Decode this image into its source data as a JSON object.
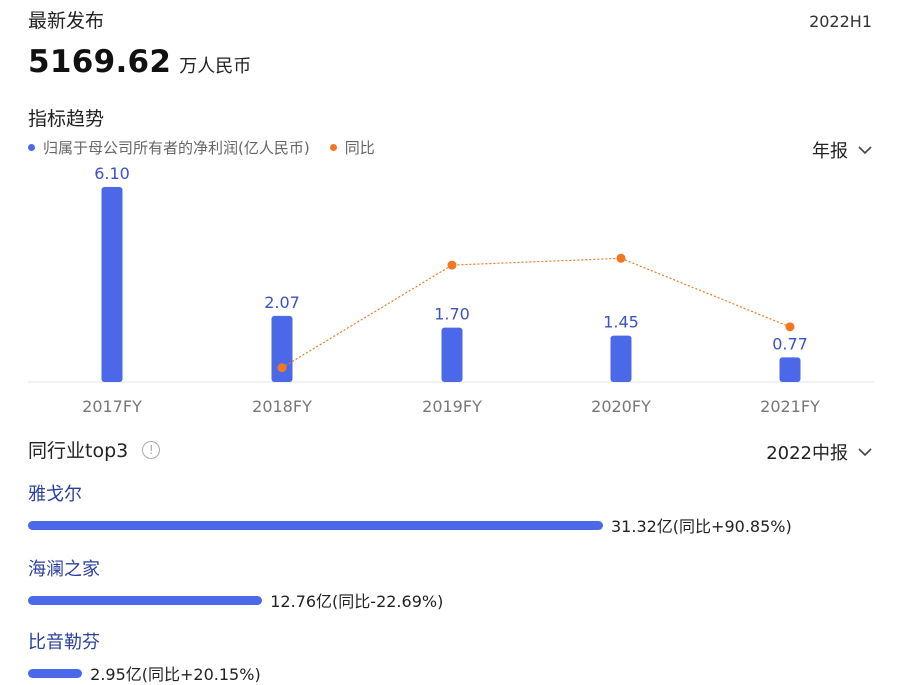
{
  "header": {
    "title": "最新发布",
    "period": "2022H1",
    "value": "5169.62",
    "unit": "万人民币"
  },
  "trend": {
    "title": "指标趋势",
    "legend_bar": "归属于母公司所有者的净利润(亿人民币)",
    "legend_line": "同比",
    "period_select": "年报",
    "colors": {
      "bar": "#4a68e8",
      "line": "#f07823"
    }
  },
  "chart_data": {
    "type": "bar",
    "categories": [
      "2017FY",
      "2018FY",
      "2019FY",
      "2020FY",
      "2021FY"
    ],
    "series": [
      {
        "name": "归属于母公司所有者的净利润(亿人民币)",
        "type": "bar",
        "values": [
          6.1,
          2.07,
          1.7,
          1.45,
          0.77
        ],
        "labels": [
          "6.10",
          "2.07",
          "1.70",
          "1.45",
          "0.77"
        ]
      },
      {
        "name": "同比",
        "type": "line",
        "values": [
          null,
          -66.1,
          -17.9,
          -14.7,
          -46.9
        ]
      }
    ],
    "ylim": [
      0,
      6.1
    ],
    "line_ylim": [
      -70,
      0
    ],
    "grid": false,
    "legend": "top-left"
  },
  "peers": {
    "title": "同行业top3",
    "period_select": "2022中报",
    "items": [
      {
        "name": "雅戈尔",
        "amount": 31.32,
        "label": "31.32亿(同比+90.85%)"
      },
      {
        "name": "海澜之家",
        "amount": 12.76,
        "label": "12.76亿(同比-22.69%)"
      },
      {
        "name": "比音勒芬",
        "amount": 2.95,
        "label": "2.95亿(同比+20.15%)"
      }
    ]
  }
}
